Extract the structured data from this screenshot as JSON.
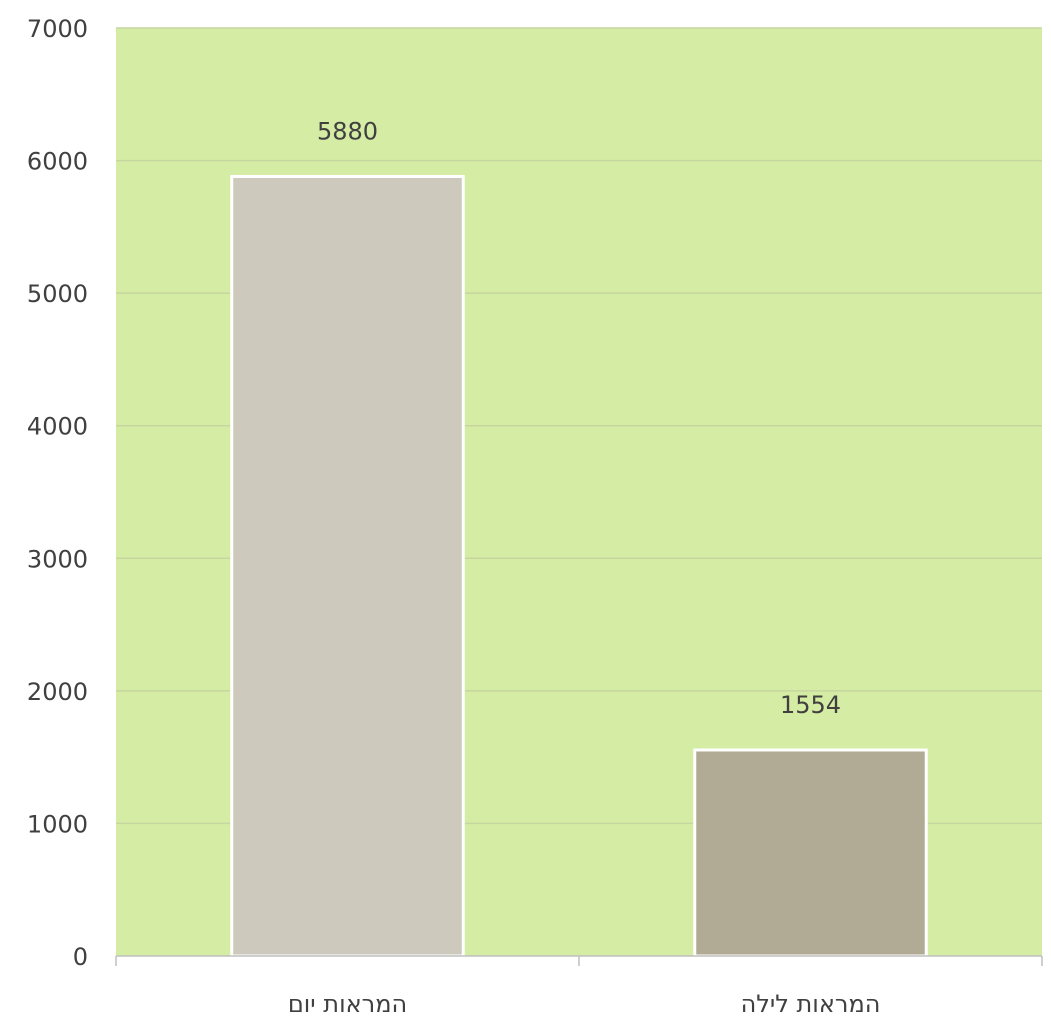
{
  "chart_data": {
    "type": "bar",
    "categories": [
      "המראות יום",
      "המראות לילה"
    ],
    "values": [
      5880,
      1554
    ],
    "data_labels": [
      "5880",
      "1554"
    ],
    "ylim": [
      0,
      7000
    ],
    "yticks": [
      0,
      1000,
      2000,
      3000,
      4000,
      5000,
      6000,
      7000
    ],
    "ytick_labels": [
      "0",
      "1000",
      "2000",
      "3000",
      "4000",
      "5000",
      "6000",
      "7000"
    ],
    "grid": true,
    "legend": "none",
    "colors": {
      "plot_background": "#d5eca4",
      "gridline": "#c6d6a0",
      "bars": [
        "#cdc9bd",
        "#b1aa95"
      ],
      "bar_outline": "#ffffff",
      "axis": "#bfbfbf",
      "text": "#404040"
    }
  }
}
